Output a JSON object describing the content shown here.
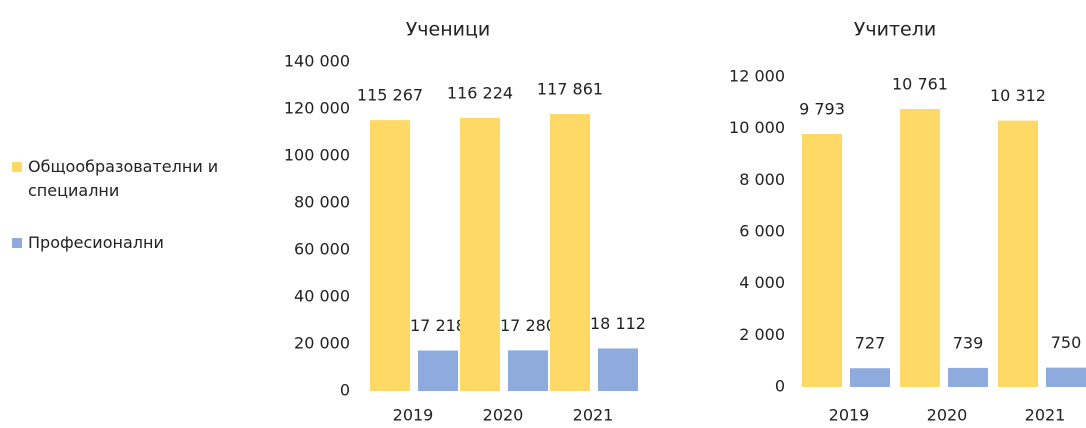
{
  "chart_data": [
    {
      "type": "bar",
      "title": "Ученици",
      "categories": [
        "2019",
        "2020",
        "2021"
      ],
      "series": [
        {
          "name": "Общообразователни и специални",
          "color": "#ffd966",
          "values": [
            115267,
            116224,
            117861
          ],
          "value_labels": [
            "115 267",
            "116 224",
            "117 861"
          ]
        },
        {
          "name": "Професионални",
          "color": "#8faadc",
          "values": [
            17218,
            17280,
            18112
          ],
          "value_labels": [
            "17 218",
            "17 280",
            "18 112"
          ]
        }
      ],
      "ylim": [
        0,
        140000
      ],
      "yticks": [
        0,
        {
          "value": 20000,
          "label": "20 000"
        },
        {
          "value": 40000,
          "label": "40 000"
        },
        {
          "value": 60000,
          "label": "60 000"
        },
        {
          "value": 80000,
          "label": "80 000"
        },
        {
          "value": 100000,
          "label": "100 000"
        },
        {
          "value": 120000,
          "label": "120 000"
        },
        {
          "value": 140000,
          "label": "140 000"
        }
      ],
      "grid": false,
      "legend": "left"
    },
    {
      "type": "bar",
      "title": "Учители",
      "categories": [
        "2019",
        "2020",
        "2021"
      ],
      "series": [
        {
          "color": "#ffd966",
          "values": [
            9793,
            10761,
            10312
          ],
          "value_labels": [
            "9 793",
            "10 761",
            "10 312"
          ]
        },
        {
          "color": "#8faadc",
          "values": [
            727,
            739,
            750
          ]
        }
      ],
      "ylim": [
        0,
        12000
      ],
      "yticks": [
        0,
        {
          "value": 2000,
          "label": "2 000"
        },
        {
          "value": 4000,
          "label": "4 000"
        },
        {
          "value": 6000,
          "label": "6 000"
        },
        {
          "value": 8000,
          "label": "8 000"
        },
        {
          "value": 10000,
          "label": "10 000"
        },
        {
          "value": 12000,
          "label": "12 000"
        }
      ],
      "grid": false
    }
  ]
}
